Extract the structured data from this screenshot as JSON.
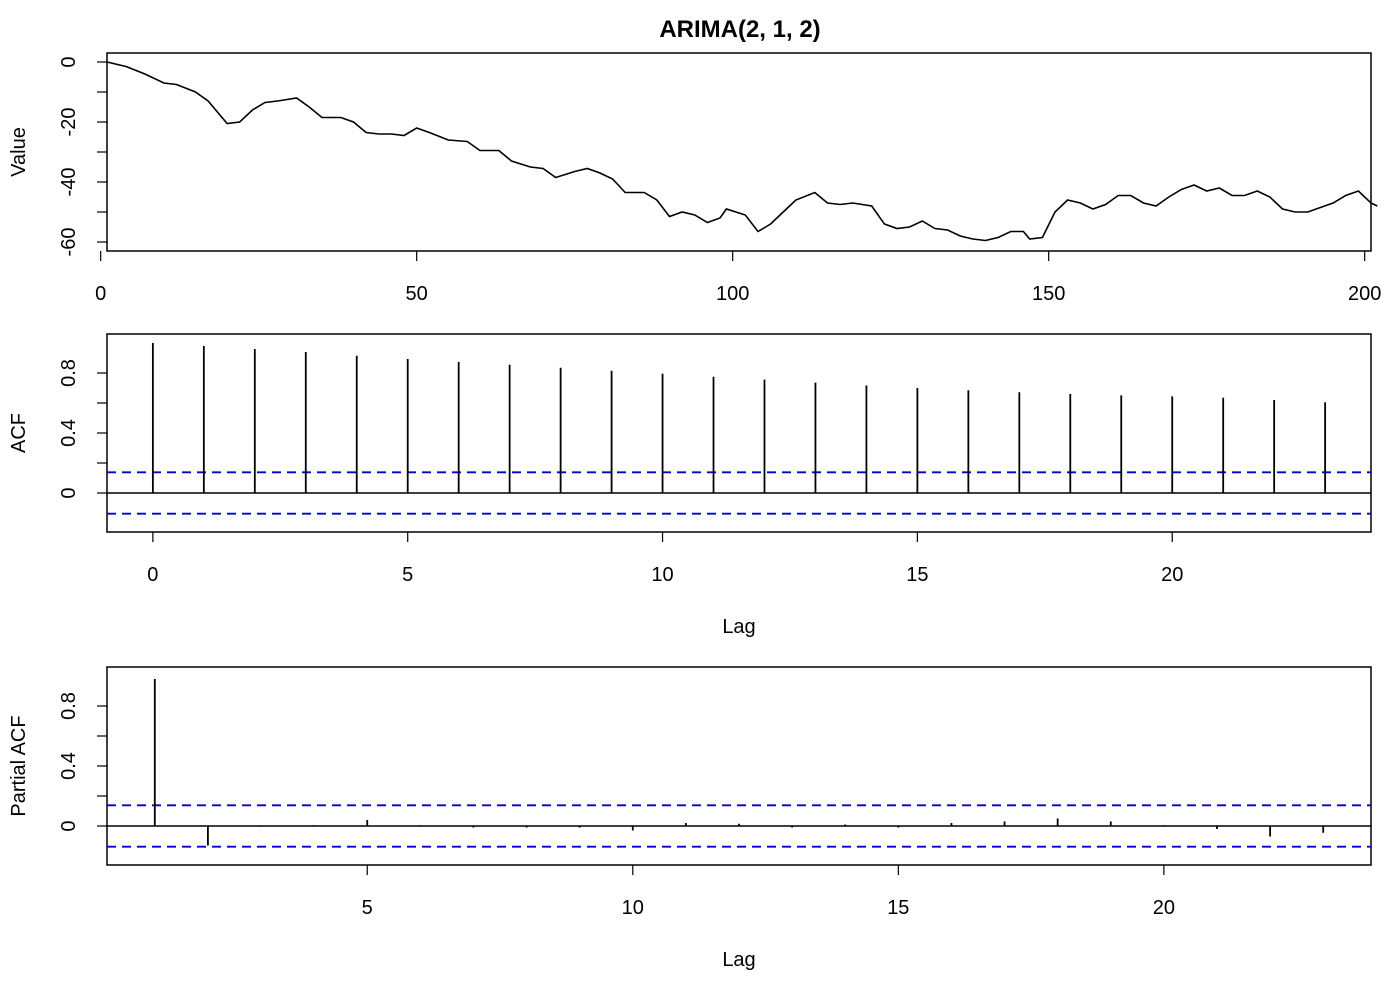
{
  "title": "ARIMA(2, 1, 2)",
  "chart_data": [
    {
      "type": "line",
      "title": "ARIMA(2, 1, 2)",
      "xlabel": "",
      "ylabel": "Value",
      "xlim": [
        1,
        201
      ],
      "ylim": [
        -60,
        0
      ],
      "xticks": [
        0,
        50,
        100,
        150,
        200
      ],
      "yticks": [
        0,
        -20,
        -40,
        -60
      ],
      "anchors": [
        [
          1,
          0
        ],
        [
          4,
          -1.5
        ],
        [
          7,
          -4
        ],
        [
          10,
          -7
        ],
        [
          12,
          -7.5
        ],
        [
          15,
          -10
        ],
        [
          17,
          -13
        ],
        [
          20,
          -20.5
        ],
        [
          22,
          -20
        ],
        [
          24,
          -16
        ],
        [
          26,
          -13.5
        ],
        [
          28,
          -13
        ],
        [
          31,
          -12
        ],
        [
          33,
          -15
        ],
        [
          35,
          -18.5
        ],
        [
          38,
          -18.5
        ],
        [
          40,
          -20
        ],
        [
          42,
          -23.5
        ],
        [
          44,
          -24
        ],
        [
          46,
          -24
        ],
        [
          48,
          -24.5
        ],
        [
          50,
          -22
        ],
        [
          52,
          -23.5
        ],
        [
          55,
          -26
        ],
        [
          58,
          -26.5
        ],
        [
          60,
          -29.5
        ],
        [
          63,
          -29.5
        ],
        [
          65,
          -33
        ],
        [
          68,
          -35
        ],
        [
          70,
          -35.5
        ],
        [
          72,
          -38.5
        ],
        [
          75,
          -36.5
        ],
        [
          77,
          -35.5
        ],
        [
          79,
          -37
        ],
        [
          81,
          -39
        ],
        [
          83,
          -43.5
        ],
        [
          86,
          -43.5
        ],
        [
          88,
          -46
        ],
        [
          90,
          -51.5
        ],
        [
          92,
          -50
        ],
        [
          94,
          -51
        ],
        [
          96,
          -53.5
        ],
        [
          98,
          -52
        ],
        [
          99,
          -49
        ],
        [
          102,
          -51
        ],
        [
          104,
          -56.5
        ],
        [
          106,
          -54
        ],
        [
          108,
          -50
        ],
        [
          110,
          -46
        ],
        [
          113,
          -43.5
        ],
        [
          115,
          -47
        ],
        [
          117,
          -47.5
        ],
        [
          119,
          -47
        ],
        [
          122,
          -48
        ],
        [
          124,
          -54
        ],
        [
          126,
          -55.5
        ],
        [
          128,
          -55
        ],
        [
          130,
          -53
        ],
        [
          132,
          -55.5
        ],
        [
          134,
          -56
        ],
        [
          136,
          -58
        ],
        [
          138,
          -59
        ],
        [
          140,
          -59.5
        ],
        [
          142,
          -58.5
        ],
        [
          144,
          -56.5
        ],
        [
          146,
          -56.5
        ],
        [
          147,
          -59
        ],
        [
          149,
          -58.5
        ],
        [
          151,
          -50
        ],
        [
          153,
          -46
        ],
        [
          155,
          -47
        ],
        [
          157,
          -49
        ],
        [
          159,
          -47.5
        ],
        [
          161,
          -44.5
        ],
        [
          163,
          -44.5
        ],
        [
          165,
          -47
        ],
        [
          167,
          -48
        ],
        [
          169,
          -45
        ],
        [
          171,
          -42.5
        ],
        [
          173,
          -41
        ],
        [
          175,
          -43
        ],
        [
          177,
          -42
        ],
        [
          179,
          -44.5
        ],
        [
          181,
          -44.5
        ],
        [
          183,
          -43
        ],
        [
          185,
          -45
        ],
        [
          187,
          -49
        ],
        [
          189,
          -50
        ],
        [
          191,
          -50
        ],
        [
          193,
          -48.5
        ],
        [
          195,
          -47
        ],
        [
          197,
          -44.5
        ],
        [
          199,
          -43
        ],
        [
          201,
          -47
        ],
        [
          202,
          -48
        ]
      ]
    },
    {
      "type": "bar",
      "title": "",
      "xlabel": "Lag",
      "ylabel": "ACF",
      "xlim": [
        -0.9,
        23.9
      ],
      "ylim": [
        -0.2,
        1.0
      ],
      "xticks": [
        0,
        5,
        10,
        15,
        20
      ],
      "yticks": [
        0.0,
        0.4,
        0.8
      ],
      "lags": [
        0,
        1,
        2,
        3,
        4,
        5,
        6,
        7,
        8,
        9,
        10,
        11,
        12,
        13,
        14,
        15,
        16,
        17,
        18,
        19,
        20,
        21,
        22,
        23
      ],
      "values": [
        1.0,
        0.98,
        0.96,
        0.94,
        0.915,
        0.893,
        0.874,
        0.855,
        0.835,
        0.815,
        0.795,
        0.775,
        0.756,
        0.736,
        0.717,
        0.7,
        0.685,
        0.672,
        0.66,
        0.651,
        0.644,
        0.635,
        0.62,
        0.605
      ],
      "conf_limit": 0.138
    },
    {
      "type": "bar",
      "title": "",
      "xlabel": "Lag",
      "ylabel": "Partial ACF",
      "xlim": [
        0.1,
        23.9
      ],
      "ylim": [
        -0.2,
        1.0
      ],
      "xticks": [
        5,
        10,
        15,
        20
      ],
      "yticks": [
        0.0,
        0.4,
        0.8
      ],
      "lags": [
        1,
        2,
        3,
        4,
        5,
        6,
        7,
        8,
        9,
        10,
        11,
        12,
        13,
        14,
        15,
        16,
        17,
        18,
        19,
        20,
        21,
        22,
        23
      ],
      "values": [
        0.98,
        -0.13,
        -0.005,
        0.005,
        0.04,
        0.005,
        -0.01,
        -0.01,
        -0.01,
        -0.03,
        0.02,
        0.015,
        -0.01,
        0.01,
        -0.01,
        0.02,
        0.03,
        0.05,
        0.03,
        0.005,
        -0.02,
        -0.07,
        -0.045
      ],
      "conf_limit": 0.138
    }
  ]
}
